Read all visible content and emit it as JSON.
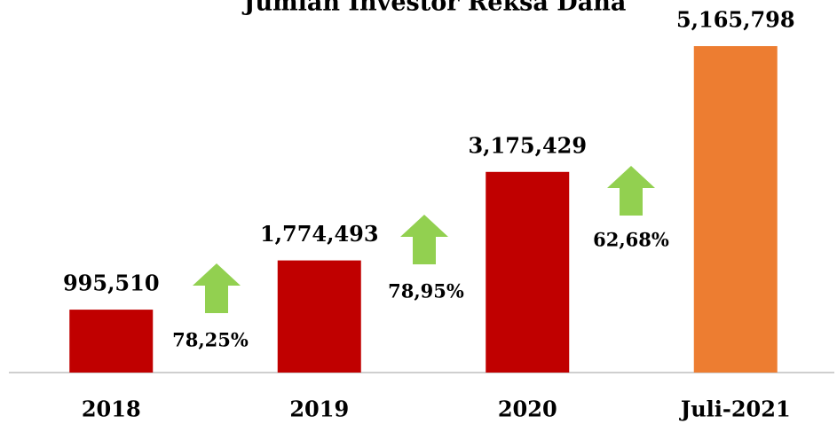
{
  "chart_data": {
    "type": "bar",
    "title": "Jumlah Investor Reksa Dana",
    "categories": [
      "2018",
      "2019",
      "2020",
      "Juli-2021"
    ],
    "values": [
      995510,
      1774493,
      3175429,
      5165798
    ],
    "value_labels": [
      "995,510",
      "1,774,493",
      "3,175,429",
      "5,165,798"
    ],
    "colors": [
      "#c00000",
      "#c00000",
      "#c00000",
      "#ed7d31"
    ],
    "annotations": [
      "78,25%",
      "78,95%",
      "62,68%"
    ],
    "annotation_color": "#92d050",
    "grid": false
  }
}
